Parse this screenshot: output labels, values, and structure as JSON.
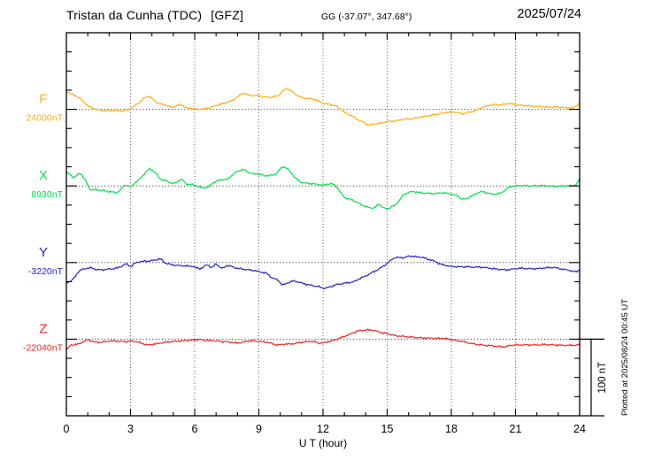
{
  "header": {
    "station": "Tristan da Cunha (TDC)",
    "institute": "[GFZ]",
    "coords": "GG (-37.07°, 347.68°)",
    "date": "2025/07/24"
  },
  "plotted_note": "Plotted at 2025/08/24 00:45 UT",
  "chart_data": {
    "type": "line",
    "title": "Tristan da Cunha (TDC) [GFZ] magnetogram 2025/07/24",
    "xlabel": "U T (hour)",
    "xlim": [
      0,
      24
    ],
    "x_major_ticks": [
      0,
      3,
      6,
      9,
      12,
      15,
      18,
      21,
      24
    ],
    "x_minor_step_hours": 1,
    "y_tick_step_nT": 25,
    "baseline_spacing_nT": 100,
    "grid": "dotted vertical lines every 3 h; dotted horizontal line at each component baseline",
    "legend_position": "left margin, one label per trace",
    "scale_bar": {
      "label": "100 nT",
      "nT": 100
    },
    "series": [
      {
        "name": "F",
        "baseline_label": "24000nT",
        "color": "#ffac12",
        "points": [
          [
            0,
            23
          ],
          [
            0.3,
            19
          ],
          [
            0.6,
            15
          ],
          [
            1.0,
            5
          ],
          [
            1.3,
            1
          ],
          [
            1.7,
            -1.5
          ],
          [
            2.0,
            -2
          ],
          [
            2.3,
            -1
          ],
          [
            2.6,
            -2
          ],
          [
            2.9,
            0
          ],
          [
            3.1,
            3
          ],
          [
            3.4,
            9
          ],
          [
            3.8,
            17
          ],
          [
            4.0,
            14
          ],
          [
            4.3,
            8
          ],
          [
            4.6,
            6
          ],
          [
            4.9,
            3
          ],
          [
            5.1,
            4
          ],
          [
            5.35,
            6
          ],
          [
            5.6,
            2
          ],
          [
            5.9,
            1
          ],
          [
            6.2,
            0
          ],
          [
            6.5,
            1
          ],
          [
            6.8,
            3
          ],
          [
            7.1,
            6
          ],
          [
            7.5,
            9
          ],
          [
            7.8,
            12
          ],
          [
            8.1,
            18
          ],
          [
            8.3,
            21
          ],
          [
            8.5,
            19
          ],
          [
            8.7,
            18
          ],
          [
            9.0,
            18
          ],
          [
            9.3,
            16
          ],
          [
            9.6,
            16
          ],
          [
            9.9,
            18
          ],
          [
            10.1,
            23
          ],
          [
            10.3,
            27
          ],
          [
            10.5,
            24
          ],
          [
            10.8,
            18
          ],
          [
            11.1,
            15
          ],
          [
            11.4,
            14
          ],
          [
            11.7,
            12
          ],
          [
            12.0,
            8
          ],
          [
            12.4,
            6
          ],
          [
            12.7,
            3
          ],
          [
            13.0,
            -4
          ],
          [
            13.3,
            -8
          ],
          [
            13.6,
            -13
          ],
          [
            13.9,
            -17
          ],
          [
            14.1,
            -20
          ],
          [
            14.4,
            -19
          ],
          [
            14.7,
            -18
          ],
          [
            15.0,
            -16
          ],
          [
            15.4,
            -15
          ],
          [
            15.8,
            -13
          ],
          [
            16.2,
            -12
          ],
          [
            16.6,
            -10
          ],
          [
            17.0,
            -8
          ],
          [
            17.4,
            -6
          ],
          [
            17.8,
            -4
          ],
          [
            18.1,
            -3.5
          ],
          [
            18.5,
            -5.5
          ],
          [
            18.8,
            -4
          ],
          [
            19.1,
            -2
          ],
          [
            19.4,
            2
          ],
          [
            19.7,
            5
          ],
          [
            20.0,
            6
          ],
          [
            20.4,
            6
          ],
          [
            20.7,
            8
          ],
          [
            21.0,
            6
          ],
          [
            21.4,
            5
          ],
          [
            21.8,
            4
          ],
          [
            22.2,
            3.5
          ],
          [
            22.6,
            3
          ],
          [
            23.0,
            3
          ],
          [
            23.4,
            2
          ],
          [
            23.7,
            2
          ],
          [
            23.9,
            5
          ],
          [
            24,
            9
          ]
        ]
      },
      {
        "name": "X",
        "baseline_label": "8930nT",
        "color": "#00e04d",
        "points": [
          [
            0,
            17
          ],
          [
            0.15,
            15
          ],
          [
            0.35,
            11.5
          ],
          [
            0.65,
            16
          ],
          [
            0.9,
            7
          ],
          [
            1.1,
            -4
          ],
          [
            1.4,
            -5
          ],
          [
            1.7,
            -6
          ],
          [
            2.05,
            -7.5
          ],
          [
            2.4,
            -8
          ],
          [
            2.75,
            1
          ],
          [
            3.0,
            -1
          ],
          [
            3.2,
            4
          ],
          [
            3.4,
            8.5
          ],
          [
            3.65,
            16
          ],
          [
            3.9,
            22
          ],
          [
            4.2,
            16
          ],
          [
            4.4,
            9
          ],
          [
            4.7,
            6.5
          ],
          [
            5.0,
            3
          ],
          [
            5.15,
            5
          ],
          [
            5.4,
            8.5
          ],
          [
            5.6,
            3
          ],
          [
            5.8,
            2
          ],
          [
            6.0,
            1
          ],
          [
            6.3,
            -2
          ],
          [
            6.6,
            -2
          ],
          [
            6.8,
            3
          ],
          [
            7.2,
            8
          ],
          [
            7.5,
            8.5
          ],
          [
            7.8,
            15
          ],
          [
            8.0,
            19
          ],
          [
            8.3,
            21
          ],
          [
            8.5,
            18
          ],
          [
            8.7,
            16
          ],
          [
            9.0,
            15.5
          ],
          [
            9.3,
            13.5
          ],
          [
            9.6,
            14
          ],
          [
            9.8,
            16
          ],
          [
            10.1,
            24.5
          ],
          [
            10.35,
            22
          ],
          [
            10.6,
            14
          ],
          [
            10.8,
            8
          ],
          [
            11.0,
            4.5
          ],
          [
            11.4,
            3
          ],
          [
            11.8,
            2
          ],
          [
            12.0,
            1
          ],
          [
            12.2,
            2.5
          ],
          [
            12.55,
            1
          ],
          [
            13.0,
            -14.5
          ],
          [
            13.3,
            -17.5
          ],
          [
            13.6,
            -21.5
          ],
          [
            14.0,
            -27
          ],
          [
            14.4,
            -28.5
          ],
          [
            14.6,
            -24
          ],
          [
            14.8,
            -28
          ],
          [
            15.0,
            -30
          ],
          [
            15.2,
            -27
          ],
          [
            15.4,
            -24
          ],
          [
            15.8,
            -11
          ],
          [
            16.2,
            -7.5
          ],
          [
            16.6,
            -9
          ],
          [
            17.2,
            -10
          ],
          [
            17.6,
            -9
          ],
          [
            18.0,
            -10.5
          ],
          [
            18.3,
            -13
          ],
          [
            18.55,
            -17.5
          ],
          [
            19.0,
            -12.5
          ],
          [
            19.4,
            -7.5
          ],
          [
            19.8,
            -10
          ],
          [
            20.2,
            -10.5
          ],
          [
            20.5,
            -6
          ],
          [
            20.75,
            -1
          ],
          [
            21.2,
            0.5
          ],
          [
            21.7,
            0
          ],
          [
            22.3,
            0.5
          ],
          [
            22.8,
            -0.5
          ],
          [
            23.2,
            0
          ],
          [
            23.65,
            0.5
          ],
          [
            23.9,
            3
          ],
          [
            24,
            10.5
          ]
        ]
      },
      {
        "name": "Y",
        "baseline_label": "-3220nT",
        "color": "#2323cc",
        "points": [
          [
            0,
            -26
          ],
          [
            0.3,
            -22
          ],
          [
            0.6,
            -11
          ],
          [
            1.1,
            -7
          ],
          [
            1.4,
            -9
          ],
          [
            1.65,
            -9.5
          ],
          [
            2.0,
            -8.5
          ],
          [
            2.2,
            -8
          ],
          [
            2.5,
            -6
          ],
          [
            2.8,
            -2
          ],
          [
            3.0,
            -5
          ],
          [
            3.2,
            -1
          ],
          [
            3.4,
            1
          ],
          [
            3.6,
            1.5
          ],
          [
            3.8,
            2
          ],
          [
            4.1,
            3
          ],
          [
            4.4,
            4.5
          ],
          [
            4.6,
            0
          ],
          [
            4.8,
            -2
          ],
          [
            5.1,
            -3.5
          ],
          [
            5.35,
            -4
          ],
          [
            5.6,
            -4.5
          ],
          [
            5.9,
            -5
          ],
          [
            6.1,
            -7
          ],
          [
            6.3,
            -7.5
          ],
          [
            6.6,
            -3
          ],
          [
            6.8,
            -6.5
          ],
          [
            7.0,
            -2
          ],
          [
            7.15,
            -5
          ],
          [
            7.3,
            -7.5
          ],
          [
            7.5,
            -4
          ],
          [
            7.75,
            -5.5
          ],
          [
            8.0,
            -7.5
          ],
          [
            8.25,
            -8.5
          ],
          [
            8.5,
            -9.5
          ],
          [
            8.8,
            -10.5
          ],
          [
            9.1,
            -12.5
          ],
          [
            9.35,
            -14
          ],
          [
            9.6,
            -19.5
          ],
          [
            9.9,
            -23
          ],
          [
            10.1,
            -29
          ],
          [
            10.35,
            -26.5
          ],
          [
            10.55,
            -24.5
          ],
          [
            10.7,
            -24.5
          ],
          [
            11.1,
            -27.5
          ],
          [
            11.5,
            -30
          ],
          [
            11.8,
            -31.5
          ],
          [
            12.05,
            -33.5
          ],
          [
            12.3,
            -32
          ],
          [
            12.6,
            -29
          ],
          [
            13.0,
            -27
          ],
          [
            13.45,
            -25
          ],
          [
            13.7,
            -21
          ],
          [
            14.0,
            -17.5
          ],
          [
            14.3,
            -13
          ],
          [
            14.55,
            -9.5
          ],
          [
            14.8,
            -5
          ],
          [
            15.0,
            -1
          ],
          [
            15.3,
            5.5
          ],
          [
            15.55,
            6.5
          ],
          [
            15.8,
            6.5
          ],
          [
            16.05,
            8.5
          ],
          [
            16.3,
            7.5
          ],
          [
            16.6,
            7
          ],
          [
            16.9,
            4.5
          ],
          [
            17.2,
            2
          ],
          [
            17.4,
            -1
          ],
          [
            17.6,
            -3
          ],
          [
            18.0,
            -5
          ],
          [
            18.4,
            -5.5
          ],
          [
            18.7,
            -5.5
          ],
          [
            19.0,
            -6
          ],
          [
            19.4,
            -6
          ],
          [
            19.7,
            -7
          ],
          [
            19.95,
            -8
          ],
          [
            20.3,
            -9
          ],
          [
            20.6,
            -9.5
          ],
          [
            20.9,
            -8.5
          ],
          [
            21.2,
            -7.5
          ],
          [
            21.6,
            -8
          ],
          [
            22.0,
            -8
          ],
          [
            22.4,
            -7
          ],
          [
            22.8,
            -6.5
          ],
          [
            23.0,
            -7.5
          ],
          [
            23.25,
            -9
          ],
          [
            23.5,
            -10
          ],
          [
            23.8,
            -12
          ],
          [
            24,
            -9.5
          ]
        ]
      },
      {
        "name": "Z",
        "baseline_label": "-22040nT",
        "color": "#ee2222",
        "points": [
          [
            0,
            -14
          ],
          [
            0.2,
            -8
          ],
          [
            0.6,
            -6
          ],
          [
            1.0,
            -1
          ],
          [
            1.3,
            -3.5
          ],
          [
            1.6,
            -4
          ],
          [
            2.0,
            -2.5
          ],
          [
            2.3,
            -2.5
          ],
          [
            2.8,
            -3
          ],
          [
            3.1,
            -2.5
          ],
          [
            3.5,
            -5
          ],
          [
            3.8,
            -7.5
          ],
          [
            4.2,
            -6
          ],
          [
            4.65,
            -4
          ],
          [
            5.0,
            -3
          ],
          [
            5.3,
            -2.5
          ],
          [
            5.7,
            -1.5
          ],
          [
            6.0,
            -1
          ],
          [
            6.2,
            -0.5
          ],
          [
            6.5,
            -1.5
          ],
          [
            6.9,
            -2
          ],
          [
            7.2,
            -3
          ],
          [
            7.5,
            -3.5
          ],
          [
            8.0,
            -5
          ],
          [
            8.4,
            -3
          ],
          [
            8.7,
            -2
          ],
          [
            9.0,
            -3
          ],
          [
            9.4,
            -4
          ],
          [
            9.7,
            -6.5
          ],
          [
            9.9,
            -7.5
          ],
          [
            10.2,
            -6.5
          ],
          [
            10.6,
            -6
          ],
          [
            11.0,
            -4
          ],
          [
            11.5,
            -3
          ],
          [
            11.8,
            -5
          ],
          [
            12.0,
            -5
          ],
          [
            12.2,
            -3.5
          ],
          [
            12.6,
            -0.5
          ],
          [
            13.0,
            3.5
          ],
          [
            13.3,
            7
          ],
          [
            13.6,
            10.5
          ],
          [
            13.9,
            11.5
          ],
          [
            14.2,
            12
          ],
          [
            14.5,
            10.5
          ],
          [
            14.8,
            8
          ],
          [
            15.0,
            7.5
          ],
          [
            15.3,
            5
          ],
          [
            15.6,
            4
          ],
          [
            16.0,
            3
          ],
          [
            16.4,
            2
          ],
          [
            16.8,
            1.5
          ],
          [
            17.3,
            1
          ],
          [
            17.6,
            1
          ],
          [
            18.0,
            -0.5
          ],
          [
            18.3,
            -2
          ],
          [
            18.6,
            -3.5
          ],
          [
            19.0,
            -6
          ],
          [
            19.4,
            -7.5
          ],
          [
            19.8,
            -8.5
          ],
          [
            20.2,
            -9.5
          ],
          [
            20.5,
            -10
          ],
          [
            20.8,
            -8
          ],
          [
            21.2,
            -7.5
          ],
          [
            21.6,
            -7.5
          ],
          [
            22.0,
            -7.5
          ],
          [
            22.4,
            -7
          ],
          [
            22.8,
            -7.5
          ],
          [
            23.2,
            -8
          ],
          [
            23.6,
            -8
          ],
          [
            24,
            -7.5
          ]
        ]
      }
    ]
  }
}
